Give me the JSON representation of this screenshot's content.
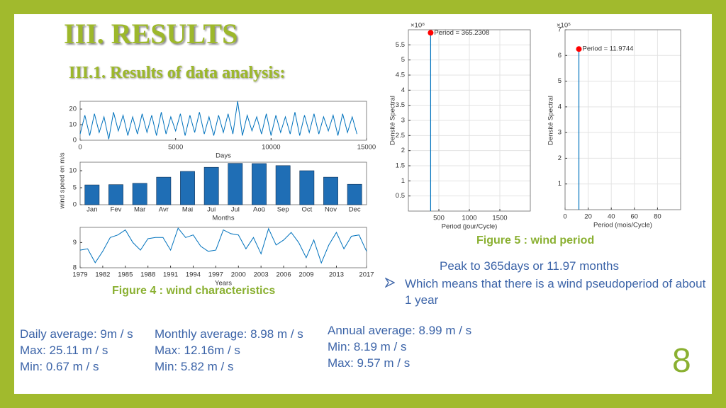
{
  "slide": {
    "title": "III. RESULTS",
    "subtitle": "III.1. Results of data analysis:",
    "figure4_caption": "Figure 4 : wind characteristics",
    "figure5_caption": "Figure 5 : wind period",
    "peak_text": "Peak to 365days or 11.97 months",
    "bullet_text": "Which means that there is a wind pseudoperiod of about 1 year",
    "stats": [
      [
        "Daily average: 9m / s",
        "Max: 25.11 m / s",
        "Min: 0.67 m / s"
      ],
      [
        "Monthly average: 8.98 m / s",
        "Max: 12.16m / s",
        "Min: 5.82 m / s"
      ],
      [
        "Annual average: 8.99 m / s",
        "Min: 8.19 m / s",
        "Max: 9.57 m / s"
      ]
    ],
    "page_number": "8"
  },
  "chart_data": [
    {
      "type": "line",
      "x": [
        0,
        250,
        500,
        750,
        1000,
        1250,
        1500,
        1750,
        2000,
        2250,
        2500,
        2750,
        3000,
        3250,
        3500,
        3750,
        4000,
        4250,
        4500,
        4750,
        5000,
        5250,
        5500,
        5750,
        6000,
        6250,
        6500,
        6750,
        7000,
        7250,
        7500,
        7750,
        8000,
        8250,
        8500,
        8750,
        9000,
        9250,
        9500,
        9750,
        10000,
        10250,
        10500,
        10750,
        11000,
        11250,
        11500,
        11750,
        12000,
        12250,
        12500,
        12750,
        13000,
        13250,
        13500,
        13750,
        14000,
        14250,
        14500
      ],
      "values": [
        4,
        16,
        3,
        17,
        5,
        15,
        0.67,
        18,
        6,
        16,
        3,
        15,
        4,
        17,
        5,
        16,
        3,
        18,
        4,
        15,
        6,
        17,
        3,
        16,
        5,
        18,
        4,
        15,
        3,
        16,
        5,
        17,
        4,
        25.11,
        3,
        16,
        6,
        15,
        4,
        17,
        3,
        16,
        5,
        15,
        4,
        18,
        3,
        16,
        5,
        17,
        4,
        15,
        6,
        16,
        3,
        17,
        5,
        15,
        4
      ],
      "color": "#0072BD",
      "xlim": [
        0,
        15000
      ],
      "xticks": [
        0,
        5000,
        10000,
        15000
      ],
      "ylim": [
        0,
        25
      ],
      "yticks": [
        0,
        10,
        20
      ],
      "x_label": "Days"
    },
    {
      "type": "bar",
      "categories": [
        "Jan",
        "Fev",
        "Mar",
        "Avr",
        "Mai",
        "Jui",
        "Jul",
        "Aoû",
        "Sep",
        "Oct",
        "Nov",
        "Dec"
      ],
      "values": [
        5.82,
        5.9,
        6.3,
        8.1,
        9.8,
        11.0,
        12.16,
        12.1,
        11.5,
        10.0,
        8.1,
        6.0
      ],
      "color": "#1F6EB5",
      "ylim": [
        0,
        12.5
      ],
      "yticks": [
        0,
        5,
        10
      ],
      "x_label": "Months",
      "y_label": "wind speed en m/s"
    },
    {
      "type": "line",
      "x": [
        1979,
        1980,
        1981,
        1982,
        1983,
        1984,
        1985,
        1986,
        1987,
        1988,
        1989,
        1990,
        1991,
        1992,
        1993,
        1994,
        1995,
        1996,
        1997,
        1998,
        1999,
        2000,
        2001,
        2002,
        2003,
        2004,
        2005,
        2006,
        2007,
        2008,
        2009,
        2010,
        2011,
        2012,
        2013,
        2014,
        2015,
        2016,
        2017
      ],
      "values": [
        8.7,
        8.75,
        8.2,
        8.65,
        9.2,
        9.3,
        9.5,
        9.0,
        8.7,
        9.15,
        9.2,
        9.2,
        8.7,
        9.57,
        9.2,
        9.3,
        8.85,
        8.65,
        8.7,
        9.5,
        9.35,
        9.3,
        8.75,
        9.2,
        8.55,
        9.55,
        8.9,
        9.1,
        9.4,
        9.0,
        8.4,
        9.1,
        8.19,
        8.9,
        9.4,
        8.75,
        9.25,
        9.3,
        8.65
      ],
      "color": "#0072BD",
      "xlim": [
        1979,
        2017
      ],
      "xticks": [
        1979,
        1982,
        1985,
        1988,
        1991,
        1994,
        1997,
        2000,
        2003,
        2006,
        2009,
        2013,
        2017
      ],
      "ylim": [
        8,
        9.6
      ],
      "yticks": [
        8,
        9
      ],
      "x_label": "Years"
    },
    {
      "type": "stem",
      "x": [
        365.2308
      ],
      "values": [
        5.9
      ],
      "color": "#0072BD",
      "marker_color": "#FF0000",
      "annotation": "Period = 365.2308",
      "xlim": [
        0,
        2000
      ],
      "xticks": [
        500,
        1000,
        1500
      ],
      "ylim": [
        0,
        6
      ],
      "yticks": [
        0.5,
        1,
        1.5,
        2,
        2.5,
        3,
        3.5,
        4,
        4.5,
        5,
        5.5
      ],
      "y_multiplier": "×10⁸",
      "x_label": "Period (jour/Cycle)",
      "y_label": "Densité Spectral",
      "grid": true
    },
    {
      "type": "stem",
      "x": [
        11.9744
      ],
      "values": [
        6.25
      ],
      "color": "#0072BD",
      "marker_color": "#FF0000",
      "annotation": "Period = 11.9744",
      "xlim": [
        0,
        100
      ],
      "xticks": [
        0,
        20,
        40,
        60,
        80
      ],
      "ylim": [
        0,
        7
      ],
      "yticks": [
        1,
        2,
        3,
        4,
        5,
        6,
        7
      ],
      "y_multiplier": "×10⁵",
      "x_label": "Period (mois/Cycle)",
      "y_label": "Densité Spectral",
      "grid": true
    }
  ]
}
